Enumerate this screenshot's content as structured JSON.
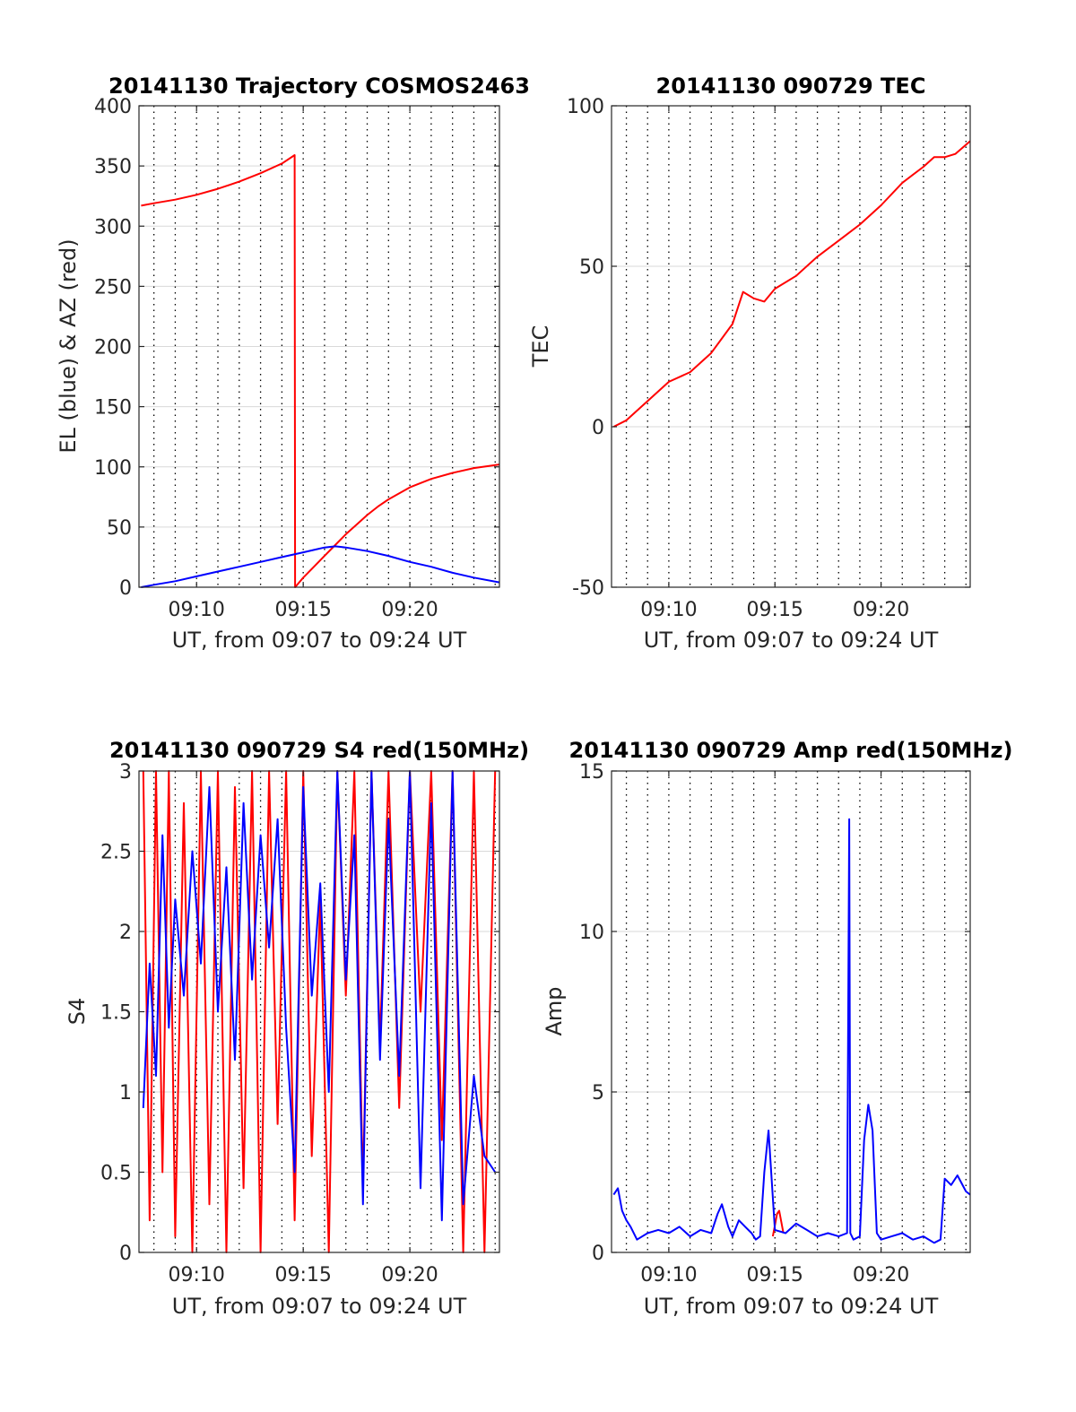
{
  "figure": {
    "background": "#ffffff",
    "grid_style": "dotted vertical grid lines, faint solid horizontal grid lines",
    "colors": {
      "red": "#ff0000",
      "blue": "#0000ff"
    }
  },
  "chart_data": [
    {
      "type": "line",
      "title": "20141130 Trajectory COSMOS2463",
      "xlabel": "UT, from 09:07 to 09:24 UT",
      "ylabel": "EL (blue) & AZ (red)",
      "xlim": [
        7.3,
        24.2
      ],
      "x_unit": "minutes after 09:00 UT",
      "xticks": [
        10,
        15,
        20
      ],
      "xtick_labels": [
        "09:10",
        "09:15",
        "09:20"
      ],
      "ylim": [
        0,
        400
      ],
      "yticks": [
        0,
        50,
        100,
        150,
        200,
        250,
        300,
        350,
        400
      ],
      "ytick_labels": [
        "0",
        "50",
        "100",
        "150",
        "200",
        "250",
        "300",
        "350",
        "400"
      ],
      "grid": true,
      "series": [
        {
          "color": "#ff0000",
          "x": [
            7.4,
            8.0,
            9.0,
            10.0,
            11.0,
            12.0,
            13.0,
            14.0,
            14.6,
            14.62,
            15.0,
            15.5,
            16.0,
            16.5,
            17.0,
            17.5,
            18.0,
            18.5,
            19.0,
            20.0,
            21.0,
            22.0,
            23.0,
            24.2
          ],
          "y": [
            317,
            319,
            322,
            326,
            331,
            337,
            344,
            352,
            359,
            0,
            8,
            17,
            26,
            35,
            44,
            52,
            60,
            67,
            73,
            83,
            90,
            95,
            99,
            102
          ]
        },
        {
          "color": "#0000ff",
          "x": [
            7.4,
            8.0,
            9.0,
            10.0,
            11.0,
            12.0,
            13.0,
            14.0,
            15.0,
            15.5,
            16.0,
            16.5,
            17.0,
            18.0,
            19.0,
            20.0,
            21.0,
            22.0,
            23.0,
            24.2
          ],
          "y": [
            0,
            2,
            5,
            9,
            13,
            17,
            21,
            25,
            29,
            31,
            33,
            34,
            33,
            30,
            26,
            21,
            17,
            12,
            8,
            4
          ]
        }
      ]
    },
    {
      "type": "line",
      "title": "20141130 090729 TEC",
      "xlabel": "UT, from 09:07 to 09:24 UT",
      "ylabel": "TEC",
      "xlim": [
        7.3,
        24.2
      ],
      "x_unit": "minutes after 09:00 UT",
      "xticks": [
        10,
        15,
        20
      ],
      "xtick_labels": [
        "09:10",
        "09:15",
        "09:20"
      ],
      "ylim": [
        -50,
        100
      ],
      "yticks": [
        -50,
        0,
        50,
        100
      ],
      "ytick_labels": [
        "-50",
        "0",
        "50",
        "100"
      ],
      "grid": true,
      "series": [
        {
          "color": "#ff0000",
          "x": [
            7.4,
            8.0,
            9.0,
            10.0,
            11.0,
            12.0,
            13.0,
            13.5,
            14.0,
            14.5,
            15.0,
            16.0,
            17.0,
            18.0,
            19.0,
            20.0,
            21.0,
            22.0,
            22.5,
            23.0,
            23.5,
            24.2
          ],
          "y": [
            0,
            2,
            8,
            14,
            17,
            23,
            32,
            42,
            40,
            39,
            43,
            47,
            53,
            58,
            63,
            69,
            76,
            81,
            84,
            84,
            85,
            89
          ]
        }
      ]
    },
    {
      "type": "line",
      "title": "20141130 090729 S4 red(150MHz)",
      "xlabel": "UT, from 09:07 to 09:24 UT",
      "ylabel": "S4",
      "xlim": [
        7.3,
        24.2
      ],
      "x_unit": "minutes after 09:00 UT",
      "xticks": [
        10,
        15,
        20
      ],
      "xtick_labels": [
        "09:10",
        "09:15",
        "09:20"
      ],
      "ylim": [
        0,
        3
      ],
      "yticks": [
        0,
        0.5,
        1,
        1.5,
        2,
        2.5,
        3
      ],
      "ytick_labels": [
        "0",
        "0.5",
        "1",
        "1.5",
        "2",
        "2.5",
        "3"
      ],
      "grid": true,
      "series": [
        {
          "color": "#ff0000",
          "x": [
            7.5,
            7.8,
            8.1,
            8.4,
            8.7,
            9.0,
            9.4,
            9.8,
            10.2,
            10.6,
            11.0,
            11.4,
            11.8,
            12.2,
            12.6,
            13.0,
            13.4,
            13.8,
            14.2,
            14.6,
            15.0,
            15.4,
            15.8,
            16.2,
            16.6,
            17.0,
            17.4,
            17.8,
            18.2,
            18.6,
            19.0,
            19.5,
            20.0,
            20.5,
            21.0,
            21.5,
            22.0,
            22.5,
            23.0,
            23.5,
            24.0
          ],
          "y": [
            3,
            0.2,
            3,
            0.5,
            3,
            0.1,
            2.8,
            0,
            3,
            0.3,
            3,
            0,
            2.9,
            0.4,
            3,
            0,
            3,
            0.8,
            3,
            0.2,
            3,
            0.6,
            2.2,
            0,
            3,
            1.6,
            3,
            0.4,
            3,
            1.3,
            3,
            0.9,
            3,
            1.5,
            3,
            0.7,
            3,
            0,
            3,
            0,
            3
          ]
        },
        {
          "color": "#0000ff",
          "x": [
            7.5,
            7.8,
            8.1,
            8.4,
            8.7,
            9.0,
            9.4,
            9.8,
            10.2,
            10.6,
            11.0,
            11.4,
            11.8,
            12.2,
            12.6,
            13.0,
            13.4,
            13.8,
            14.2,
            14.6,
            15.0,
            15.4,
            15.8,
            16.2,
            16.6,
            17.0,
            17.4,
            17.8,
            18.2,
            18.6,
            19.0,
            19.5,
            20.0,
            20.5,
            21.0,
            21.5,
            22.0,
            22.5,
            23.0,
            23.5,
            24.0
          ],
          "y": [
            0.9,
            1.8,
            1.1,
            2.6,
            1.4,
            2.2,
            1.6,
            2.5,
            1.8,
            2.9,
            1.5,
            2.4,
            1.2,
            2.8,
            1.7,
            2.6,
            1.9,
            2.7,
            1.4,
            0.5,
            2.9,
            1.6,
            2.3,
            1.0,
            3,
            1.7,
            2.6,
            0.3,
            3,
            1.2,
            2.7,
            1.1,
            3,
            0.4,
            2.8,
            0.2,
            3,
            0.3,
            1.1,
            0.6,
            0.5
          ]
        }
      ]
    },
    {
      "type": "line",
      "title": "20141130 090729 Amp red(150MHz)",
      "xlabel": "UT, from 09:07 to 09:24 UT",
      "ylabel": "Amp",
      "xlim": [
        7.3,
        24.2
      ],
      "x_unit": "minutes after 09:00 UT",
      "xticks": [
        10,
        15,
        20
      ],
      "xtick_labels": [
        "09:10",
        "09:15",
        "09:20"
      ],
      "ylim": [
        0,
        15
      ],
      "yticks": [
        0,
        5,
        10,
        15
      ],
      "ytick_labels": [
        "0",
        "5",
        "10",
        "15"
      ],
      "grid": true,
      "series": [
        {
          "color": "#ff0000",
          "x": [
            14.9,
            15.1,
            15.2,
            15.4
          ],
          "y": [
            0.5,
            1.2,
            1.3,
            0.6
          ]
        },
        {
          "color": "#0000ff",
          "x": [
            7.4,
            7.6,
            7.8,
            8.0,
            8.2,
            8.5,
            9.0,
            9.5,
            10.0,
            10.5,
            11.0,
            11.5,
            12.0,
            12.3,
            12.5,
            12.8,
            13.0,
            13.3,
            13.6,
            13.9,
            14.1,
            14.3,
            14.5,
            14.7,
            15.0,
            15.5,
            16.0,
            16.5,
            17.0,
            17.5,
            18.0,
            18.4,
            18.5,
            18.55,
            18.7,
            19.0,
            19.2,
            19.4,
            19.6,
            19.8,
            20.0,
            20.5,
            21.0,
            21.5,
            22.0,
            22.5,
            22.8,
            23.0,
            23.3,
            23.6,
            24.0,
            24.2
          ],
          "y": [
            1.8,
            2.0,
            1.3,
            1.0,
            0.8,
            0.4,
            0.6,
            0.7,
            0.6,
            0.8,
            0.5,
            0.7,
            0.6,
            1.2,
            1.5,
            0.8,
            0.5,
            1.0,
            0.8,
            0.6,
            0.4,
            0.5,
            2.5,
            3.8,
            0.7,
            0.6,
            0.9,
            0.7,
            0.5,
            0.6,
            0.5,
            0.6,
            13.5,
            0.6,
            0.4,
            0.5,
            3.5,
            4.6,
            3.8,
            0.6,
            0.4,
            0.5,
            0.6,
            0.4,
            0.5,
            0.3,
            0.4,
            2.3,
            2.1,
            2.4,
            1.9,
            1.8
          ]
        }
      ]
    }
  ]
}
